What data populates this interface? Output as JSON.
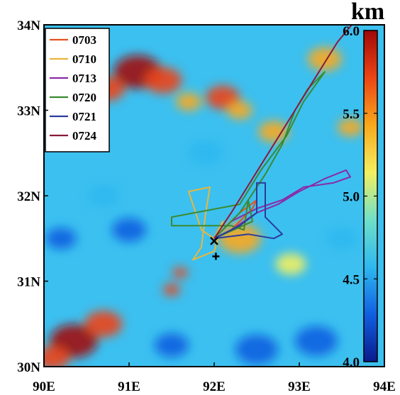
{
  "map": {
    "lon_ticks": [
      "90E",
      "91E",
      "92E",
      "93E",
      "94E"
    ],
    "lat_ticks": [
      "30N",
      "31N",
      "32N",
      "33N",
      "34N"
    ],
    "lon_range": [
      90,
      94
    ],
    "lat_range": [
      30,
      34
    ]
  },
  "colorbar": {
    "unit": "km",
    "ticks": [
      "4.0",
      "4.5",
      "5.0",
      "5.5",
      "6.0"
    ],
    "range": [
      4.0,
      6.0
    ],
    "colors": [
      "#0a1a8c",
      "#1060e0",
      "#2eb8f0",
      "#6fe0c8",
      "#f2f060",
      "#f9a81c",
      "#ec4415",
      "#a00808"
    ]
  },
  "legend": {
    "items": [
      {
        "label": "0703",
        "color": "#e4521f"
      },
      {
        "label": "0710",
        "color": "#e8b73a"
      },
      {
        "label": "0713",
        "color": "#8a2aa8"
      },
      {
        "label": "0720",
        "color": "#3a8a30"
      },
      {
        "label": "0721",
        "color": "#2c3c9c"
      },
      {
        "label": "0724",
        "color": "#8a1a3a"
      }
    ]
  },
  "markers": [
    {
      "symbol": "×",
      "lon": 92.0,
      "lat": 31.47
    },
    {
      "symbol": "+",
      "lon": 92.02,
      "lat": 31.29
    }
  ],
  "tracks": [
    {
      "color": "#e4521f",
      "points": [
        [
          92.0,
          31.5
        ],
        [
          92.15,
          31.65
        ],
        [
          92.3,
          31.8
        ],
        [
          92.5,
          31.95
        ],
        [
          92.45,
          31.85
        ],
        [
          92.2,
          31.6
        ],
        [
          92.0,
          31.5
        ]
      ]
    },
    {
      "color": "#e8b73a",
      "points": [
        [
          92.0,
          31.5
        ],
        [
          91.85,
          31.6
        ],
        [
          91.75,
          31.9
        ],
        [
          91.7,
          32.05
        ],
        [
          91.95,
          32.1
        ],
        [
          91.9,
          31.8
        ],
        [
          91.85,
          31.4
        ],
        [
          91.75,
          31.25
        ],
        [
          92.0,
          31.35
        ],
        [
          92.1,
          31.7
        ],
        [
          92.0,
          31.5
        ]
      ]
    },
    {
      "color": "#8a2aa8",
      "points": [
        [
          92.0,
          31.5
        ],
        [
          92.2,
          31.6
        ],
        [
          92.5,
          31.8
        ],
        [
          92.75,
          31.9
        ],
        [
          93.0,
          32.05
        ],
        [
          93.3,
          32.2
        ],
        [
          93.55,
          32.3
        ],
        [
          93.6,
          32.22
        ],
        [
          93.4,
          32.15
        ],
        [
          93.05,
          32.1
        ],
        [
          92.8,
          31.95
        ],
        [
          92.5,
          31.85
        ],
        [
          92.2,
          31.7
        ],
        [
          92.0,
          31.5
        ]
      ]
    },
    {
      "color": "#3a8a30",
      "points": [
        [
          92.0,
          31.5
        ],
        [
          92.3,
          31.8
        ],
        [
          92.6,
          32.25
        ],
        [
          92.8,
          32.6
        ],
        [
          92.95,
          33.0
        ],
        [
          93.1,
          33.25
        ],
        [
          93.3,
          33.45
        ],
        [
          93.05,
          33.1
        ],
        [
          92.85,
          32.7
        ],
        [
          92.55,
          32.3
        ],
        [
          92.3,
          31.9
        ],
        [
          91.5,
          31.75
        ],
        [
          91.5,
          31.65
        ],
        [
          92.2,
          31.65
        ],
        [
          92.35,
          31.6
        ],
        [
          92.4,
          31.95
        ],
        [
          92.45,
          31.7
        ],
        [
          92.0,
          31.5
        ]
      ]
    },
    {
      "color": "#2c3c9c",
      "points": [
        [
          92.0,
          31.5
        ],
        [
          92.3,
          31.65
        ],
        [
          92.5,
          31.8
        ],
        [
          92.5,
          32.15
        ],
        [
          92.6,
          32.15
        ],
        [
          92.6,
          31.75
        ],
        [
          92.8,
          31.55
        ],
        [
          92.7,
          31.5
        ],
        [
          92.4,
          31.55
        ],
        [
          92.0,
          31.5
        ]
      ]
    },
    {
      "color": "#8a1a3a",
      "points": [
        [
          92.0,
          31.5
        ],
        [
          92.2,
          31.8
        ],
        [
          92.45,
          32.2
        ],
        [
          92.7,
          32.6
        ],
        [
          92.95,
          33.0
        ],
        [
          93.2,
          33.4
        ],
        [
          93.45,
          33.8
        ],
        [
          93.7,
          34.1
        ]
      ]
    }
  ],
  "color_blobs": [
    {
      "lon": 91.1,
      "lat": 33.45,
      "r": 0.28,
      "v": 6.0
    },
    {
      "lon": 91.4,
      "lat": 33.35,
      "r": 0.22,
      "v": 5.8
    },
    {
      "lon": 90.75,
      "lat": 33.25,
      "r": 0.2,
      "v": 5.6
    },
    {
      "lon": 90.35,
      "lat": 30.3,
      "r": 0.28,
      "v": 6.0
    },
    {
      "lon": 90.7,
      "lat": 30.5,
      "r": 0.22,
      "v": 5.8
    },
    {
      "lon": 90.1,
      "lat": 30.1,
      "r": 0.2,
      "v": 5.8
    },
    {
      "lon": 92.1,
      "lat": 33.15,
      "r": 0.2,
      "v": 5.6
    },
    {
      "lon": 92.3,
      "lat": 33.0,
      "r": 0.15,
      "v": 5.4
    },
    {
      "lon": 92.7,
      "lat": 32.75,
      "r": 0.18,
      "v": 5.5
    },
    {
      "lon": 93.3,
      "lat": 33.6,
      "r": 0.2,
      "v": 5.3
    },
    {
      "lon": 91.5,
      "lat": 30.9,
      "r": 0.1,
      "v": 5.8
    },
    {
      "lon": 91.6,
      "lat": 31.1,
      "r": 0.09,
      "v": 5.6
    },
    {
      "lon": 92.3,
      "lat": 31.5,
      "r": 0.25,
      "v": 5.4
    },
    {
      "lon": 91.7,
      "lat": 33.1,
      "r": 0.15,
      "v": 5.3
    },
    {
      "lon": 90.7,
      "lat": 32.0,
      "r": 0.18,
      "v": 4.5
    },
    {
      "lon": 91.0,
      "lat": 31.6,
      "r": 0.2,
      "v": 4.4
    },
    {
      "lon": 90.2,
      "lat": 31.5,
      "r": 0.18,
      "v": 4.4
    },
    {
      "lon": 92.5,
      "lat": 30.2,
      "r": 0.25,
      "v": 4.3
    },
    {
      "lon": 93.2,
      "lat": 30.3,
      "r": 0.25,
      "v": 4.4
    },
    {
      "lon": 91.5,
      "lat": 30.25,
      "r": 0.2,
      "v": 4.4
    },
    {
      "lon": 92.9,
      "lat": 31.2,
      "r": 0.18,
      "v": 5.2
    },
    {
      "lon": 93.5,
      "lat": 31.5,
      "r": 0.18,
      "v": 4.5
    },
    {
      "lon": 93.6,
      "lat": 32.8,
      "r": 0.15,
      "v": 5.3
    },
    {
      "lon": 90.4,
      "lat": 33.8,
      "r": 0.15,
      "v": 4.6
    },
    {
      "lon": 91.9,
      "lat": 32.5,
      "r": 0.2,
      "v": 4.5
    },
    {
      "lon": 90.3,
      "lat": 32.9,
      "r": 0.15,
      "v": 4.6
    }
  ]
}
